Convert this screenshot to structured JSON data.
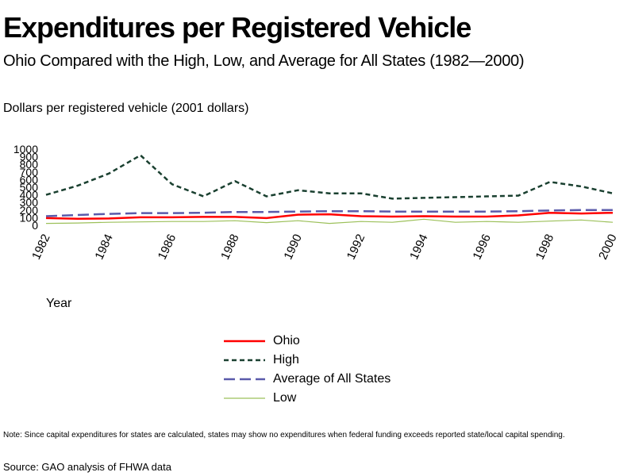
{
  "header": {
    "title": "Expenditures per Registered Vehicle",
    "subtitle": "Ohio Compared with the High, Low, and Average for All States (1982—2000)",
    "y_unit_label": "Dollars per registered vehicle (2001 dollars)"
  },
  "footer": {
    "note": "Note: Since capital expenditures for states are calculated, states may show no expenditures when federal funding exceeds reported state/local capital spending.",
    "source": "Source: GAO analysis of FHWA data"
  },
  "chart_data": {
    "type": "line",
    "title": "Expenditures per Registered Vehicle",
    "subtitle": "Ohio Compared with the High, Low, and Average for All States (1982—2000)",
    "xlabel": "Year",
    "ylabel": "Dollars per registered vehicle (2001 dollars)",
    "x": [
      1982,
      1983,
      1984,
      1985,
      1986,
      1987,
      1988,
      1989,
      1990,
      1991,
      1992,
      1993,
      1994,
      1995,
      1996,
      1997,
      1998,
      1999,
      2000
    ],
    "x_ticks": [
      "1982",
      "1984",
      "1986",
      "1988",
      "1990",
      "1992",
      "1994",
      "1996",
      "1998",
      "2000"
    ],
    "y_ticks": [
      "0",
      "100",
      "200",
      "300",
      "400",
      "500",
      "600",
      "700",
      "800",
      "900",
      "1000"
    ],
    "ylim": [
      0,
      1000
    ],
    "xlim": [
      1982,
      2000
    ],
    "grid": false,
    "legend_position": "bottom",
    "series": [
      {
        "name": "Ohio",
        "color": "#ff0000",
        "dash": "solid",
        "values": [
          95,
          85,
          90,
          105,
          105,
          110,
          110,
          95,
          140,
          145,
          120,
          115,
          120,
          115,
          115,
          130,
          165,
          155,
          165
        ]
      },
      {
        "name": "High",
        "color": "#1a4030",
        "dash": "dotted-heavy",
        "values": [
          400,
          520,
          680,
          920,
          540,
          380,
          580,
          380,
          460,
          420,
          420,
          350,
          360,
          370,
          380,
          390,
          570,
          510,
          420
        ]
      },
      {
        "name": "Average of All States",
        "color": "#5a5aaa",
        "dash": "dashed",
        "values": [
          120,
          135,
          150,
          160,
          160,
          165,
          175,
          175,
          180,
          185,
          185,
          180,
          180,
          180,
          180,
          185,
          195,
          200,
          200
        ]
      },
      {
        "name": "Low",
        "color": "#9cc05a",
        "dash": "solid-thin",
        "values": [
          25,
          30,
          40,
          45,
          50,
          50,
          60,
          35,
          60,
          25,
          50,
          40,
          80,
          40,
          50,
          40,
          55,
          70,
          40
        ]
      }
    ]
  }
}
